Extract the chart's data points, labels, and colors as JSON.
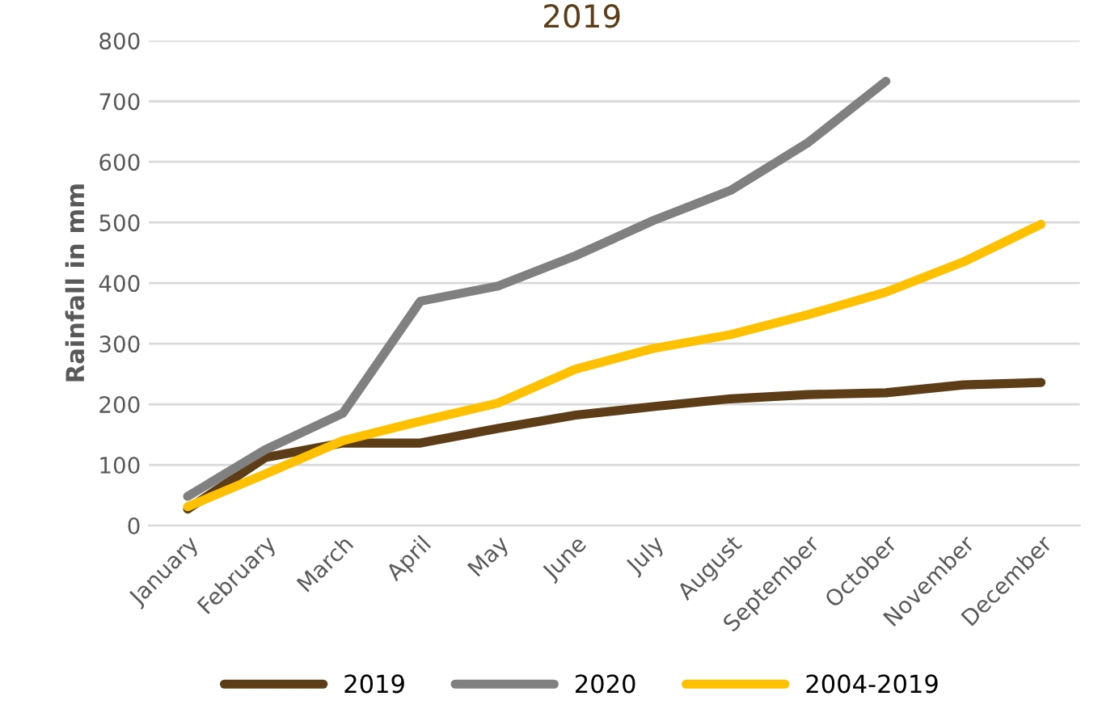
{
  "chart_data": {
    "type": "line",
    "title": "2019",
    "ylabel": "Rainfall in mm",
    "categories": [
      "January",
      "February",
      "March",
      "April",
      "May",
      "June",
      "July",
      "August",
      "September",
      "October",
      "November",
      "December"
    ],
    "series": [
      {
        "name": "2019",
        "color": "#5c3d17",
        "values": [
          27,
          112,
          136,
          136,
          160,
          182,
          196,
          209,
          216,
          219,
          232,
          236
        ]
      },
      {
        "name": "2020",
        "color": "#808080",
        "values": [
          48,
          125,
          185,
          370,
          395,
          445,
          503,
          553,
          632,
          733,
          null,
          null
        ]
      },
      {
        "name": "2004-2019",
        "color": "#ffc000",
        "values": [
          31,
          85,
          140,
          172,
          202,
          258,
          292,
          315,
          348,
          385,
          435,
          497
        ]
      }
    ],
    "ylim": [
      0,
      800
    ],
    "yticks": [
      0,
      100,
      200,
      300,
      400,
      500,
      600,
      700,
      800
    ],
    "grid": "y",
    "legend": "bottom",
    "marker": "none",
    "line_style": "solid"
  }
}
